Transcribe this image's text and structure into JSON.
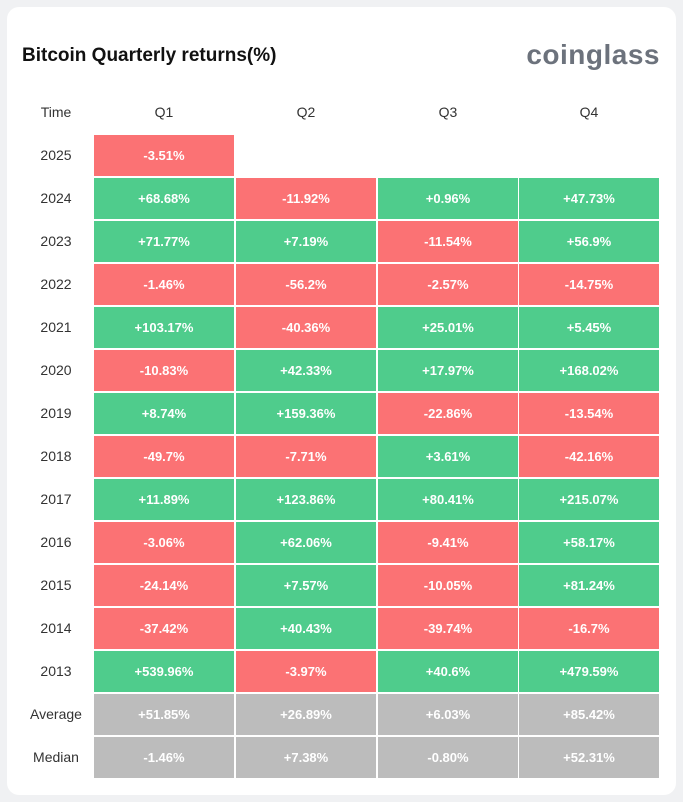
{
  "title": "Bitcoin Quarterly returns(%)",
  "brand": "coinglass",
  "colors": {
    "positive": "#4fcc8c",
    "negative": "#fb7274",
    "summary": "#bcbcbc"
  },
  "headers": [
    "Time",
    "Q1",
    "Q2",
    "Q3",
    "Q4"
  ],
  "rows": [
    {
      "label": "2025",
      "cells": [
        {
          "v": "-3.51%",
          "t": "neg"
        },
        null,
        null,
        null
      ]
    },
    {
      "label": "2024",
      "cells": [
        {
          "v": "+68.68%",
          "t": "pos"
        },
        {
          "v": "-11.92%",
          "t": "neg"
        },
        {
          "v": "+0.96%",
          "t": "pos"
        },
        {
          "v": "+47.73%",
          "t": "pos"
        }
      ]
    },
    {
      "label": "2023",
      "cells": [
        {
          "v": "+71.77%",
          "t": "pos"
        },
        {
          "v": "+7.19%",
          "t": "pos"
        },
        {
          "v": "-11.54%",
          "t": "neg"
        },
        {
          "v": "+56.9%",
          "t": "pos"
        }
      ]
    },
    {
      "label": "2022",
      "cells": [
        {
          "v": "-1.46%",
          "t": "neg"
        },
        {
          "v": "-56.2%",
          "t": "neg"
        },
        {
          "v": "-2.57%",
          "t": "neg"
        },
        {
          "v": "-14.75%",
          "t": "neg"
        }
      ]
    },
    {
      "label": "2021",
      "cells": [
        {
          "v": "+103.17%",
          "t": "pos"
        },
        {
          "v": "-40.36%",
          "t": "neg"
        },
        {
          "v": "+25.01%",
          "t": "pos"
        },
        {
          "v": "+5.45%",
          "t": "pos"
        }
      ]
    },
    {
      "label": "2020",
      "cells": [
        {
          "v": "-10.83%",
          "t": "neg"
        },
        {
          "v": "+42.33%",
          "t": "pos"
        },
        {
          "v": "+17.97%",
          "t": "pos"
        },
        {
          "v": "+168.02%",
          "t": "pos"
        }
      ]
    },
    {
      "label": "2019",
      "cells": [
        {
          "v": "+8.74%",
          "t": "pos"
        },
        {
          "v": "+159.36%",
          "t": "pos"
        },
        {
          "v": "-22.86%",
          "t": "neg"
        },
        {
          "v": "-13.54%",
          "t": "neg"
        }
      ]
    },
    {
      "label": "2018",
      "cells": [
        {
          "v": "-49.7%",
          "t": "neg"
        },
        {
          "v": "-7.71%",
          "t": "neg"
        },
        {
          "v": "+3.61%",
          "t": "pos"
        },
        {
          "v": "-42.16%",
          "t": "neg"
        }
      ]
    },
    {
      "label": "2017",
      "cells": [
        {
          "v": "+11.89%",
          "t": "pos"
        },
        {
          "v": "+123.86%",
          "t": "pos"
        },
        {
          "v": "+80.41%",
          "t": "pos"
        },
        {
          "v": "+215.07%",
          "t": "pos"
        }
      ]
    },
    {
      "label": "2016",
      "cells": [
        {
          "v": "-3.06%",
          "t": "neg"
        },
        {
          "v": "+62.06%",
          "t": "pos"
        },
        {
          "v": "-9.41%",
          "t": "neg"
        },
        {
          "v": "+58.17%",
          "t": "pos"
        }
      ]
    },
    {
      "label": "2015",
      "cells": [
        {
          "v": "-24.14%",
          "t": "neg"
        },
        {
          "v": "+7.57%",
          "t": "pos"
        },
        {
          "v": "-10.05%",
          "t": "neg"
        },
        {
          "v": "+81.24%",
          "t": "pos"
        }
      ]
    },
    {
      "label": "2014",
      "cells": [
        {
          "v": "-37.42%",
          "t": "neg"
        },
        {
          "v": "+40.43%",
          "t": "pos"
        },
        {
          "v": "-39.74%",
          "t": "neg"
        },
        {
          "v": "-16.7%",
          "t": "neg"
        }
      ]
    },
    {
      "label": "2013",
      "cells": [
        {
          "v": "+539.96%",
          "t": "pos"
        },
        {
          "v": "-3.97%",
          "t": "neg"
        },
        {
          "v": "+40.6%",
          "t": "pos"
        },
        {
          "v": "+479.59%",
          "t": "pos"
        }
      ]
    },
    {
      "label": "Average",
      "cells": [
        {
          "v": "+51.85%",
          "t": "sum"
        },
        {
          "v": "+26.89%",
          "t": "sum"
        },
        {
          "v": "+6.03%",
          "t": "sum"
        },
        {
          "v": "+85.42%",
          "t": "sum"
        }
      ]
    },
    {
      "label": "Median",
      "cells": [
        {
          "v": "-1.46%",
          "t": "sum"
        },
        {
          "v": "+7.38%",
          "t": "sum"
        },
        {
          "v": "-0.80%",
          "t": "sum"
        },
        {
          "v": "+52.31%",
          "t": "sum"
        }
      ]
    }
  ]
}
